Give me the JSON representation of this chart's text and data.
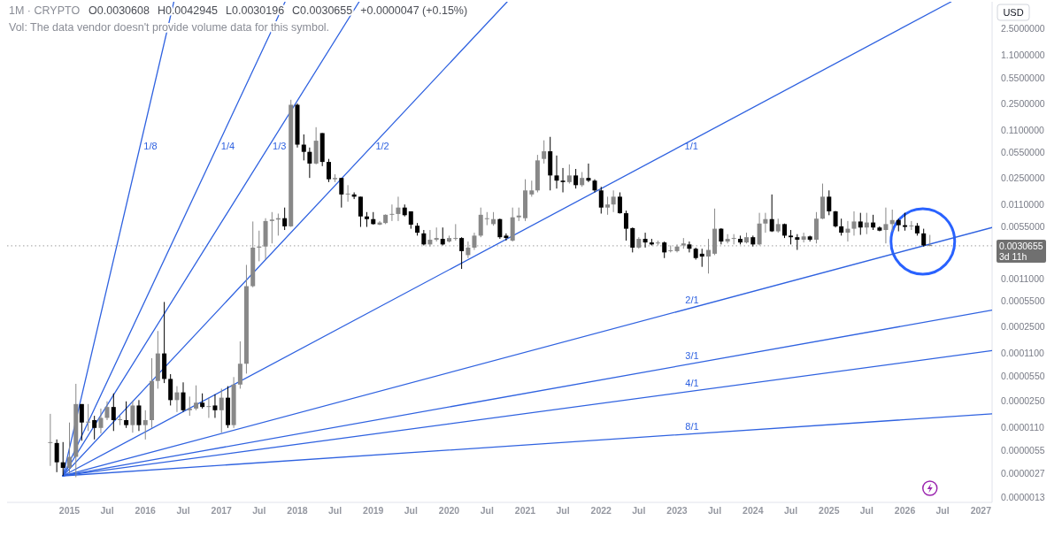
{
  "chart_data": {
    "type": "candlestick",
    "title": "1M · CRYPTO",
    "subtitle": "Vol: The data vendor doesn't provide volume data for this symbol.",
    "ylabel": "USD",
    "annotations": [
      "O0.0030608",
      "H0.0042945",
      "L0.0030196",
      "C0.0030655",
      "+0.0000047 (+0.15%)",
      "3d 11h"
    ],
    "log": true,
    "xlim": [
      "2014-03-07",
      "2027-02-24"
    ],
    "ylim": [
      1.1e-06,
      5.8
    ],
    "xticks": [
      {
        "value": "2015-01",
        "label": "2015"
      },
      {
        "value": "2015-07",
        "label": "Jul"
      },
      {
        "value": "2016-01",
        "label": "2016"
      },
      {
        "value": "2016-07",
        "label": "Jul"
      },
      {
        "value": "2017-01",
        "label": "2017"
      },
      {
        "value": "2017-07",
        "label": "Jul"
      },
      {
        "value": "2018-01",
        "label": "2018"
      },
      {
        "value": "2018-07",
        "label": "Jul"
      },
      {
        "value": "2019-01",
        "label": "2019"
      },
      {
        "value": "2019-07",
        "label": "Jul"
      },
      {
        "value": "2020-01",
        "label": "2020"
      },
      {
        "value": "2020-07",
        "label": "Jul"
      },
      {
        "value": "2021-01",
        "label": "2021"
      },
      {
        "value": "2021-07",
        "label": "Jul"
      },
      {
        "value": "2022-01",
        "label": "2022"
      },
      {
        "value": "2022-07",
        "label": "Jul"
      },
      {
        "value": "2023-01",
        "label": "2023"
      },
      {
        "value": "2023-07",
        "label": "Jul"
      },
      {
        "value": "2024-01",
        "label": "2024"
      },
      {
        "value": "2024-07",
        "label": "Jul"
      },
      {
        "value": "2025-01",
        "label": "2025"
      },
      {
        "value": "2025-07",
        "label": "Jul"
      },
      {
        "value": "2026-01",
        "label": "2026"
      },
      {
        "value": "2026-07",
        "label": "Jul"
      },
      {
        "value": "2027-01",
        "label": "2027"
      }
    ],
    "yticks": [
      {
        "value": 2.5,
        "label": "2.5000000"
      },
      {
        "value": 1.1,
        "label": "1.1000000"
      },
      {
        "value": 0.55,
        "label": "0.5500000"
      },
      {
        "value": 0.25,
        "label": "0.2500000"
      },
      {
        "value": 0.11,
        "label": "0.1100000"
      },
      {
        "value": 0.055,
        "label": "0.0550000"
      },
      {
        "value": 0.025,
        "label": "0.0250000"
      },
      {
        "value": 0.011,
        "label": "0.0110000"
      },
      {
        "value": 0.0055,
        "label": "0.0055000"
      },
      {
        "value": 0.0011,
        "label": "0.0011000"
      },
      {
        "value": 0.00055,
        "label": "0.0005500"
      },
      {
        "value": 0.00025,
        "label": "0.0002500"
      },
      {
        "value": 0.00011,
        "label": "0.0001100"
      },
      {
        "value": 5.5e-05,
        "label": "0.0000550"
      },
      {
        "value": 2.5e-05,
        "label": "0.0000250"
      },
      {
        "value": 1.1e-05,
        "label": "0.0000110"
      },
      {
        "value": 5.5e-06,
        "label": "0.0000055"
      },
      {
        "value": 2.7e-06,
        "label": "0.0000027"
      },
      {
        "value": 1.3e-06,
        "label": "0.0000013"
      }
    ],
    "ref_lines": [
      {
        "axis": "y",
        "value": 0.0030655,
        "label": "0.0030655",
        "color": "#9e9e9e",
        "line_style": "dotted"
      }
    ],
    "x": [
      "2014-10",
      "2014-11",
      "2014-12",
      "2015-01",
      "2015-02",
      "2015-03",
      "2015-04",
      "2015-05",
      "2015-06",
      "2015-07",
      "2015-08",
      "2015-09",
      "2015-10",
      "2015-11",
      "2015-12",
      "2016-01",
      "2016-02",
      "2016-03",
      "2016-04",
      "2016-05",
      "2016-06",
      "2016-07",
      "2016-08",
      "2016-09",
      "2016-10",
      "2016-11",
      "2016-12",
      "2017-01",
      "2017-02",
      "2017-03",
      "2017-04",
      "2017-05",
      "2017-06",
      "2017-07",
      "2017-08",
      "2017-09",
      "2017-10",
      "2017-11",
      "2017-12",
      "2018-01",
      "2018-02",
      "2018-03",
      "2018-04",
      "2018-05",
      "2018-06",
      "2018-07",
      "2018-08",
      "2018-09",
      "2018-10",
      "2018-11",
      "2018-12",
      "2019-01",
      "2019-02",
      "2019-03",
      "2019-04",
      "2019-05",
      "2019-06",
      "2019-07",
      "2019-08",
      "2019-09",
      "2019-10",
      "2019-11",
      "2019-12",
      "2020-01",
      "2020-02",
      "2020-03",
      "2020-04",
      "2020-05",
      "2020-06",
      "2020-07",
      "2020-08",
      "2020-09",
      "2020-10",
      "2020-11",
      "2020-12",
      "2021-01",
      "2021-02",
      "2021-03",
      "2021-04",
      "2021-05",
      "2021-06",
      "2021-07",
      "2021-08",
      "2021-09",
      "2021-10",
      "2021-11",
      "2021-12",
      "2022-01",
      "2022-02",
      "2022-03",
      "2022-04",
      "2022-05",
      "2022-06",
      "2022-07",
      "2022-08",
      "2022-09",
      "2022-10",
      "2022-11",
      "2022-12",
      "2023-01",
      "2023-02",
      "2023-03",
      "2023-04",
      "2023-05",
      "2023-06",
      "2023-07",
      "2023-08",
      "2023-09",
      "2023-10",
      "2023-11",
      "2023-12",
      "2024-01",
      "2024-02",
      "2024-03",
      "2024-04",
      "2024-05",
      "2024-06",
      "2024-07",
      "2024-08",
      "2024-09",
      "2024-10",
      "2024-11",
      "2024-12",
      "2025-01",
      "2025-02",
      "2025-03",
      "2025-04",
      "2025-05",
      "2025-06",
      "2025-07",
      "2025-08",
      "2025-09",
      "2025-10",
      "2025-11",
      "2025-12",
      "2026-01",
      "2026-02",
      "2026-03",
      "2026-04",
      "2026-05"
    ],
    "ohlc": [
      [
        6.9e-06,
        1.7e-05,
        3.4e-06,
        6.9e-06
      ],
      [
        6.9e-06,
        7.7e-06,
        2.8e-06,
        3.8e-06
      ],
      [
        3.8e-06,
        7.1e-06,
        2.5e-06,
        3.2e-06
      ],
      [
        3.2e-06,
        1.3e-05,
        2.7e-06,
        4.5e-06
      ],
      [
        4.5e-06,
        4.3e-05,
        2.4e-06,
        2.3e-05
      ],
      [
        2.3e-05,
        2.3e-05,
        7.4e-06,
        1.3e-05
      ],
      [
        1.3e-05,
        2.3e-05,
        1e-05,
        1.3e-05
      ],
      [
        1.4e-05,
        1.6e-05,
        7.7e-06,
        1.1e-05
      ],
      [
        1.1e-05,
        2e-05,
        9.3e-06,
        1.5e-05
      ],
      [
        1.5e-05,
        2.5e-05,
        1.4e-05,
        2.1e-05
      ],
      [
        2.1e-05,
        3.2e-05,
        1e-05,
        1.4e-05
      ],
      [
        1.4e-05,
        1.6e-05,
        1.2e-05,
        1.4e-05
      ],
      [
        1.4e-05,
        2.5e-05,
        1.1e-05,
        1.2e-05
      ],
      [
        1.2e-05,
        2.5e-05,
        9.5e-06,
        2.2e-05
      ],
      [
        2.2e-05,
        2.6e-05,
        1e-05,
        1.2e-05
      ],
      [
        1.2e-05,
        1.9e-05,
        7.7e-06,
        1.4e-05
      ],
      [
        1.4e-05,
        9.5e-05,
        1.1e-05,
        4.7e-05
      ],
      [
        4.7e-05,
        0.00022,
        3.7e-05,
        0.00011
      ],
      [
        0.00011,
        0.00054,
        4.4e-05,
        5e-05
      ],
      [
        5e-05,
        5.8e-05,
        2.2e-05,
        2.6e-05
      ],
      [
        2.6e-05,
        4e-05,
        1.8e-05,
        3.3e-05
      ],
      [
        3.3e-05,
        4.5e-05,
        1.8e-05,
        1.9e-05
      ],
      [
        1.9e-05,
        2.9e-05,
        1.6e-05,
        2e-05
      ],
      [
        2e-05,
        4.1e-05,
        1.9e-05,
        2.4e-05
      ],
      [
        2.4e-05,
        3.2e-05,
        2e-05,
        2.1e-05
      ],
      [
        2.1e-05,
        2.8e-05,
        1.5e-05,
        2.1e-05
      ],
      [
        2.2e-05,
        3.1e-05,
        1.5e-05,
        1.9e-05
      ],
      [
        1.9e-05,
        3.7e-05,
        9.5e-06,
        2.8e-05
      ],
      [
        2.8e-05,
        4e-05,
        1.1e-05,
        1.2e-05
      ],
      [
        1.2e-05,
        5.3e-05,
        1.1e-05,
        4.2e-05
      ],
      [
        4.2e-05,
        0.00016,
        3.7e-05,
        8e-05
      ],
      [
        8e-05,
        0.0017,
        5.9e-05,
        0.00088
      ],
      [
        0.00088,
        0.0065,
        0.00085,
        0.0029
      ],
      [
        0.0029,
        0.0049,
        0.0019,
        0.003
      ],
      [
        0.003,
        0.0072,
        0.002,
        0.0066
      ],
      [
        0.0066,
        0.0087,
        0.0033,
        0.0069
      ],
      [
        0.0069,
        0.0083,
        0.0042,
        0.0072
      ],
      [
        0.0072,
        0.01,
        0.005,
        0.0056
      ],
      [
        0.0056,
        0.28,
        0.0055,
        0.24
      ],
      [
        0.24,
        0.25,
        0.064,
        0.07
      ],
      [
        0.07,
        0.096,
        0.043,
        0.056
      ],
      [
        0.056,
        0.064,
        0.025,
        0.039
      ],
      [
        0.039,
        0.12,
        0.038,
        0.079
      ],
      [
        0.1,
        0.1,
        0.036,
        0.041
      ],
      [
        0.041,
        0.045,
        0.022,
        0.024
      ],
      [
        0.024,
        0.028,
        0.022,
        0.025
      ],
      [
        0.025,
        0.025,
        0.01,
        0.015
      ],
      [
        0.015,
        0.02,
        0.012,
        0.015
      ],
      [
        0.015,
        0.016,
        0.013,
        0.014
      ],
      [
        0.014,
        0.014,
        0.0055,
        0.0076
      ],
      [
        0.0076,
        0.0087,
        0.0055,
        0.007
      ],
      [
        0.007,
        0.0087,
        0.0059,
        0.006
      ],
      [
        0.0059,
        0.0066,
        0.0058,
        0.0063
      ],
      [
        0.0062,
        0.0081,
        0.006,
        0.008
      ],
      [
        0.008,
        0.011,
        0.0066,
        0.0082
      ],
      [
        0.0082,
        0.014,
        0.0066,
        0.01
      ],
      [
        0.01,
        0.011,
        0.0076,
        0.0079
      ],
      [
        0.0089,
        0.0089,
        0.0052,
        0.0059
      ],
      [
        0.0057,
        0.0062,
        0.0042,
        0.0046
      ],
      [
        0.0045,
        0.005,
        0.0031,
        0.0032
      ],
      [
        0.0032,
        0.005,
        0.003,
        0.0037
      ],
      [
        0.0037,
        0.0054,
        0.0035,
        0.0039
      ],
      [
        0.0038,
        0.0054,
        0.0031,
        0.0032
      ],
      [
        0.0035,
        0.0042,
        0.0034,
        0.0039
      ],
      [
        0.0038,
        0.006,
        0.0036,
        0.0038
      ],
      [
        0.0039,
        0.004,
        0.0015,
        0.0026
      ],
      [
        0.0023,
        0.0035,
        0.0021,
        0.0029
      ],
      [
        0.0029,
        0.0046,
        0.0027,
        0.0042
      ],
      [
        0.0042,
        0.01,
        0.004,
        0.008
      ],
      [
        0.007,
        0.0087,
        0.0058,
        0.007
      ],
      [
        0.006,
        0.0087,
        0.0057,
        0.007
      ],
      [
        0.007,
        0.0071,
        0.0038,
        0.004
      ],
      [
        0.0042,
        0.0045,
        0.0036,
        0.0039
      ],
      [
        0.0036,
        0.01,
        0.0035,
        0.0074
      ],
      [
        0.0074,
        0.01,
        0.0066,
        0.0078
      ],
      [
        0.0072,
        0.024,
        0.0066,
        0.017
      ],
      [
        0.015,
        0.023,
        0.014,
        0.017
      ],
      [
        0.017,
        0.051,
        0.016,
        0.043
      ],
      [
        0.045,
        0.08,
        0.039,
        0.057
      ],
      [
        0.057,
        0.089,
        0.017,
        0.027
      ],
      [
        0.027,
        0.05,
        0.018,
        0.023
      ],
      [
        0.023,
        0.034,
        0.016,
        0.022
      ],
      [
        0.022,
        0.038,
        0.021,
        0.027
      ],
      [
        0.027,
        0.033,
        0.018,
        0.02
      ],
      [
        0.02,
        0.03,
        0.019,
        0.025
      ],
      [
        0.025,
        0.039,
        0.022,
        0.023
      ],
      [
        0.023,
        0.024,
        0.016,
        0.017
      ],
      [
        0.017,
        0.019,
        0.0083,
        0.01
      ],
      [
        0.01,
        0.014,
        0.008,
        0.011
      ],
      [
        0.011,
        0.017,
        0.0087,
        0.014
      ],
      [
        0.014,
        0.016,
        0.0083,
        0.0084
      ],
      [
        0.0084,
        0.0091,
        0.0036,
        0.0052
      ],
      [
        0.0053,
        0.0054,
        0.0025,
        0.0029
      ],
      [
        0.0029,
        0.004,
        0.0028,
        0.0038
      ],
      [
        0.0038,
        0.0046,
        0.0029,
        0.0034
      ],
      [
        0.0034,
        0.0038,
        0.0031,
        0.0032
      ],
      [
        0.0033,
        0.0036,
        0.0031,
        0.0033
      ],
      [
        0.0034,
        0.0035,
        0.0021,
        0.0025
      ],
      [
        0.0026,
        0.0031,
        0.0025,
        0.0026
      ],
      [
        0.0026,
        0.0032,
        0.0025,
        0.003
      ],
      [
        0.0031,
        0.0039,
        0.0028,
        0.0033
      ],
      [
        0.0032,
        0.0035,
        0.0025,
        0.0028
      ],
      [
        0.0028,
        0.0029,
        0.002,
        0.0021
      ],
      [
        0.0024,
        0.0028,
        0.0016,
        0.0022
      ],
      [
        0.0022,
        0.0038,
        0.0013,
        0.0027
      ],
      [
        0.0024,
        0.0097,
        0.0023,
        0.0052
      ],
      [
        0.0052,
        0.0053,
        0.0032,
        0.0035
      ],
      [
        0.0035,
        0.0044,
        0.0033,
        0.0038
      ],
      [
        0.0038,
        0.0044,
        0.0032,
        0.0038
      ],
      [
        0.0038,
        0.0042,
        0.0032,
        0.0034
      ],
      [
        0.0034,
        0.0046,
        0.0033,
        0.004
      ],
      [
        0.004,
        0.0042,
        0.003,
        0.0032
      ],
      [
        0.0032,
        0.0085,
        0.0031,
        0.0061
      ],
      [
        0.0061,
        0.0085,
        0.0046,
        0.007
      ],
      [
        0.007,
        0.015,
        0.0047,
        0.0048
      ],
      [
        0.0048,
        0.0071,
        0.0046,
        0.006
      ],
      [
        0.006,
        0.0061,
        0.0039,
        0.0042
      ],
      [
        0.0042,
        0.005,
        0.0032,
        0.004
      ],
      [
        0.004,
        0.0044,
        0.0027,
        0.0037
      ],
      [
        0.0037,
        0.0046,
        0.0034,
        0.0041
      ],
      [
        0.0041,
        0.0042,
        0.0035,
        0.0037
      ],
      [
        0.0037,
        0.0087,
        0.0033,
        0.0071
      ],
      [
        0.0071,
        0.021,
        0.007,
        0.014
      ],
      [
        0.014,
        0.017,
        0.0079,
        0.0089
      ],
      [
        0.0089,
        0.009,
        0.0054,
        0.0056
      ],
      [
        0.0056,
        0.0071,
        0.0042,
        0.0046
      ],
      [
        0.0046,
        0.0066,
        0.0035,
        0.0052
      ],
      [
        0.0052,
        0.0089,
        0.0042,
        0.0065
      ],
      [
        0.0065,
        0.0085,
        0.0043,
        0.0054
      ],
      [
        0.0054,
        0.0085,
        0.0044,
        0.0063
      ],
      [
        0.0063,
        0.008,
        0.005,
        0.0054
      ],
      [
        0.0054,
        0.0056,
        0.0048,
        0.0049
      ],
      [
        0.005,
        0.01,
        0.0033,
        0.006
      ],
      [
        0.006,
        0.0094,
        0.0048,
        0.0068
      ],
      [
        0.0068,
        0.0071,
        0.0048,
        0.0058
      ],
      [
        0.0058,
        0.0085,
        0.0049,
        0.0055
      ],
      [
        0.0056,
        0.0066,
        0.005,
        0.0056
      ],
      [
        0.0057,
        0.0062,
        0.0042,
        0.0045
      ],
      [
        0.0045,
        0.0052,
        0.003,
        0.0031
      ],
      [
        0.0030608,
        0.0042945,
        0.0030196,
        0.0030655
      ]
    ],
    "colors": [
      "#888888",
      "#000000",
      "#000000",
      "#888888",
      "#888888",
      "#000000",
      "#888888",
      "#000000",
      "#888888",
      "#888888",
      "#000000",
      "#888888",
      "#000000",
      "#888888",
      "#000000",
      "#888888",
      "#888888",
      "#888888",
      "#000000",
      "#000000",
      "#888888",
      "#000000",
      "#888888",
      "#888888",
      "#000000",
      "#888888",
      "#000000",
      "#888888",
      "#000000",
      "#888888",
      "#888888",
      "#888888",
      "#888888",
      "#888888",
      "#888888",
      "#888888",
      "#888888",
      "#000000",
      "#888888",
      "#000000",
      "#000000",
      "#000000",
      "#888888",
      "#000000",
      "#000000",
      "#888888",
      "#000000",
      "#888888",
      "#000000",
      "#000000",
      "#000000",
      "#000000",
      "#888888",
      "#888888",
      "#888888",
      "#888888",
      "#000000",
      "#000000",
      "#000000",
      "#000000",
      "#888888",
      "#888888",
      "#000000",
      "#888888",
      "#888888",
      "#000000",
      "#888888",
      "#888888",
      "#888888",
      "#888888",
      "#888888",
      "#000000",
      "#000000",
      "#888888",
      "#888888",
      "#888888",
      "#888888",
      "#888888",
      "#888888",
      "#000000",
      "#000000",
      "#000000",
      "#888888",
      "#000000",
      "#888888",
      "#000000",
      "#000000",
      "#000000",
      "#888888",
      "#888888",
      "#000000",
      "#000000",
      "#000000",
      "#888888",
      "#000000",
      "#000000",
      "#888888",
      "#000000",
      "#888888",
      "#888888",
      "#888888",
      "#000000",
      "#000000",
      "#000000",
      "#888888",
      "#888888",
      "#000000",
      "#888888",
      "#888888",
      "#000000",
      "#888888",
      "#000000",
      "#888888",
      "#888888",
      "#000000",
      "#888888",
      "#000000",
      "#000000",
      "#000000",
      "#888888",
      "#000000",
      "#888888",
      "#888888",
      "#000000",
      "#000000",
      "#000000",
      "#888888",
      "#888888",
      "#000000",
      "#888888",
      "#000000",
      "#000000",
      "#888888",
      "#888888",
      "#000000",
      "#000000",
      "#888888",
      "#000000",
      "#000000",
      "#888888"
    ],
    "series": [
      {
        "name": "1/8",
        "type": "line",
        "color": "#2f62e0",
        "x": [
          "2014-12",
          "2016-05-17"
        ],
        "values": [
          2.5e-06,
          5.8
        ]
      },
      {
        "name": "1/4",
        "type": "line",
        "color": "#2f62e0",
        "x": [
          "2014-12",
          "2017-11-03"
        ],
        "values": [
          2.5e-06,
          5.8
        ]
      },
      {
        "name": "1/3",
        "type": "line",
        "color": "#2f62e0",
        "x": [
          "2014-12",
          "2018-10-25"
        ],
        "values": [
          2.5e-06,
          5.8
        ]
      },
      {
        "name": "1/2",
        "type": "line",
        "color": "#2f62e0",
        "x": [
          "2014-12",
          "2020-10-06"
        ],
        "values": [
          2.5e-06,
          5.8
        ]
      },
      {
        "name": "1/1",
        "type": "line",
        "color": "#2f62e0",
        "x": [
          "2014-12",
          "2026-08-11"
        ],
        "values": [
          2.5e-06,
          5.8
        ]
      },
      {
        "name": "2/1",
        "type": "line",
        "color": "#2f62e0",
        "x": [
          "2014-12",
          "2027-02-24"
        ],
        "values": [
          2.5e-06,
          0.0054
        ]
      },
      {
        "name": "3/1",
        "type": "line",
        "color": "#2f62e0",
        "x": [
          "2014-12",
          "2027-02-24"
        ],
        "values": [
          2.5e-06,
          0.00042
        ]
      },
      {
        "name": "4/1",
        "type": "line",
        "color": "#2f62e0",
        "x": [
          "2014-12",
          "2027-02-24"
        ],
        "values": [
          2.5e-06,
          0.00012
        ]
      },
      {
        "name": "8/1",
        "type": "line",
        "color": "#2f62e0",
        "x": [
          "2014-12",
          "2027-02-24"
        ],
        "values": [
          2.5e-06,
          1.7e-05
        ]
      }
    ]
  }
}
